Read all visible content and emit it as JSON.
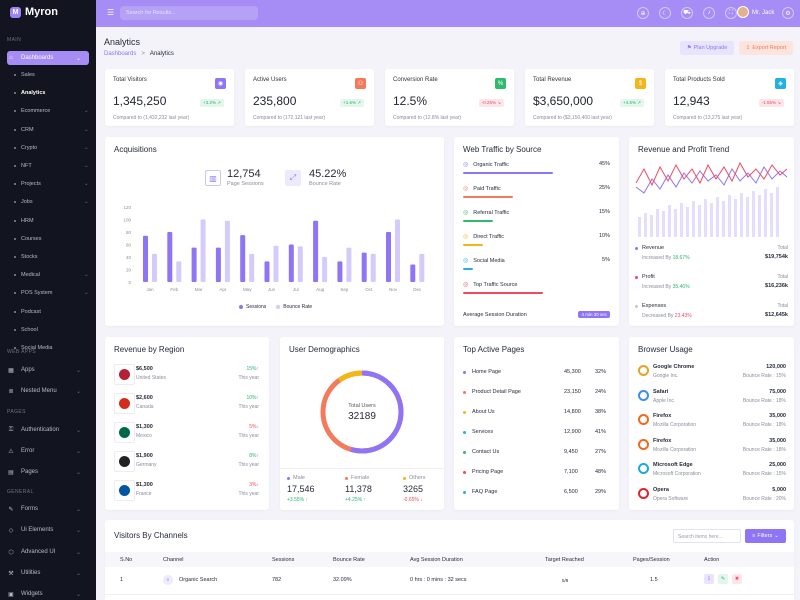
{
  "app": {
    "name": "Myron",
    "logo_letter": "M"
  },
  "sidebar": {
    "sections": [
      "MAIN",
      "WEB APPS",
      "PAGES",
      "GENERAL"
    ],
    "dashboards": "Dashboards",
    "subs": [
      "Sales",
      "Analytics",
      "Ecommerce",
      "CRM",
      "Crypto",
      "NFT",
      "Projects",
      "Jobs",
      "HRM",
      "Courses",
      "Stocks",
      "Medical",
      "POS System",
      "Podcast",
      "School",
      "Social Media"
    ],
    "web_apps": [
      "Apps",
      "Nested Menu"
    ],
    "pages": [
      "Authentication",
      "Error",
      "Pages"
    ],
    "general": [
      "Forms",
      "Ui Elements",
      "Advanced UI",
      "Utilities",
      "Widgets"
    ]
  },
  "topbar": {
    "search_placeholder": "Search for Results...",
    "user": "Mr. Jack"
  },
  "page": {
    "title": "Analytics",
    "crumb1": "Dashboards",
    "sep": ">",
    "crumb2": "Analytics",
    "btn_plan": "Plan Upgrade",
    "btn_export": "Export Report"
  },
  "stats": [
    {
      "label": "Total Visitors",
      "value": "1,345,250",
      "badge": "+3.2%",
      "cmp": "Compared to (1,432,232 last year)",
      "up": true,
      "color": "#8f74f6",
      "icon": "◉"
    },
    {
      "label": "Active Users",
      "value": "235,800",
      "badge": "+1.6%",
      "cmp": "Compared to (172,121 last year)",
      "up": true,
      "color": "#f37a5a",
      "icon": "⚇"
    },
    {
      "label": "Conversion Rate",
      "value": "12.5%",
      "badge": "-0.25%",
      "cmp": "Compared to (12.8% last year)",
      "up": false,
      "color": "#2fbb6f",
      "icon": "%"
    },
    {
      "label": "Total Revenue",
      "value": "$3,650,000",
      "badge": "+4.5%",
      "cmp": "Compared to ($3,150,400 last year)",
      "up": true,
      "color": "#f4b616",
      "icon": "$"
    },
    {
      "label": "Total Products Sold",
      "value": "12,943",
      "badge": "-1.55%",
      "cmp": "Compared to (13,275 last year)",
      "up": false,
      "color": "#25b0e3",
      "icon": "◈"
    }
  ],
  "acq": {
    "title": "Acquisitions",
    "v1": "12,754",
    "l1": "Page Sessions",
    "v2": "45.22%",
    "l2": "Bounce Rate",
    "legend1": "Sessions",
    "legend2": "Bounce Rate"
  },
  "chart_data": {
    "type": "bar",
    "categories": [
      "Jan",
      "Feb",
      "Mar",
      "Apr",
      "May",
      "Jun",
      "Jul",
      "Aug",
      "Sep",
      "Oct",
      "Nov",
      "Dec"
    ],
    "series": [
      {
        "name": "Sessions",
        "values": [
          74,
          80,
          55,
          55,
          75,
          33,
          60,
          98,
          33,
          47,
          80,
          28
        ]
      },
      {
        "name": "Bounce Rate",
        "values": [
          45,
          33,
          100,
          98,
          45,
          58,
          57,
          40,
          55,
          45,
          100,
          45
        ]
      }
    ],
    "ylim": [
      0,
      120
    ],
    "yticks": [
      "0",
      "20",
      "40",
      "60",
      "80",
      "100",
      "120"
    ]
  },
  "traffic": {
    "title": "Web Traffic by Source",
    "items": [
      {
        "name": "Organic Traffic",
        "pct": "45%",
        "v": 45,
        "color": "#8f74f6"
      },
      {
        "name": "Paid Traffic",
        "pct": "25%",
        "v": 25,
        "color": "#f37a5a"
      },
      {
        "name": "Referral Traffic",
        "pct": "15%",
        "v": 15,
        "color": "#2fbb6f"
      },
      {
        "name": "Direct Traffic",
        "pct": "10%",
        "v": 10,
        "color": "#f4b616"
      },
      {
        "name": "Social Media",
        "pct": "5%",
        "v": 5,
        "color": "#25b0e3"
      },
      {
        "name": "Top Traffic Source",
        "pct": "",
        "v": 100,
        "color": "#ef4a5f"
      }
    ],
    "avg_label": "Average Session Duration",
    "avg_value": "4 min 30 sec"
  },
  "trend": {
    "title": "Revenue and Profit Trend",
    "items": [
      {
        "name": "Revenue",
        "sub": "Increased By",
        "chg": "18.67%",
        "up": true,
        "tl": "Total",
        "tv": "$19,754k",
        "dot": "#8f74f6"
      },
      {
        "name": "Profit",
        "sub": "Increased By",
        "chg": "35.46%",
        "up": true,
        "tl": "Total",
        "tv": "$16,236k",
        "dot": "#ef4a5f"
      },
      {
        "name": "Expenses",
        "sub": "Decreased By",
        "chg": "23.43%",
        "up": false,
        "tl": "Total",
        "tv": "$12,645k",
        "dot": "#c9c9d4"
      }
    ]
  },
  "region": {
    "title": "Revenue by Region",
    "items": [
      {
        "val": "$6,500",
        "name": "United States",
        "chg": "15%",
        "up": true,
        "p": "This year"
      },
      {
        "val": "$2,600",
        "name": "Canada",
        "chg": "10%",
        "up": true,
        "p": "This year"
      },
      {
        "val": "$1,300",
        "name": "Mexico",
        "chg": "5%",
        "up": false,
        "p": "This year"
      },
      {
        "val": "$1,900",
        "name": "Germany",
        "chg": "8%",
        "up": true,
        "p": "This year"
      },
      {
        "val": "$1,300",
        "name": "France",
        "chg": "3%",
        "up": false,
        "p": "This year"
      }
    ]
  },
  "demo": {
    "title": "User Demographics",
    "center_label": "Total Users",
    "center_value": "32189",
    "items": [
      {
        "name": "Male",
        "value": "17,546",
        "chg": "+3.55%",
        "up": true,
        "color": "#8f74f6"
      },
      {
        "name": "Female",
        "value": "11,378",
        "chg": "+4.25%",
        "up": true,
        "color": "#f37a5a"
      },
      {
        "name": "Others",
        "value": "3265",
        "chg": "-0.65%",
        "up": false,
        "color": "#f4b616"
      }
    ]
  },
  "pages": {
    "title": "Top Active Pages",
    "items": [
      {
        "name": "Home Page",
        "v": "45,300",
        "p": "32%",
        "c": "#8f74f6"
      },
      {
        "name": "Product Detail Page",
        "v": "23,150",
        "p": "24%",
        "c": "#f37a5a"
      },
      {
        "name": "About Us",
        "v": "14,800",
        "p": "38%",
        "c": "#f4b616"
      },
      {
        "name": "Services",
        "v": "12,900",
        "p": "41%",
        "c": "#25b0e3"
      },
      {
        "name": "Contact Us",
        "v": "9,450",
        "p": "27%",
        "c": "#2fbb6f"
      },
      {
        "name": "Pricing Page",
        "v": "7,100",
        "p": "48%",
        "c": "#ef4a5f"
      },
      {
        "name": "FAQ Page",
        "v": "6,500",
        "p": "29%",
        "c": "#25b0e3"
      }
    ]
  },
  "browser": {
    "title": "Browser Usage",
    "items": [
      {
        "name": "Google Chrome",
        "sub": "Google Inc.",
        "v": "120,000",
        "b": "Bounce Rate : 15%"
      },
      {
        "name": "Safari",
        "sub": "Apple Inc.",
        "v": "75,000",
        "b": "Bounce Rate : 18%"
      },
      {
        "name": "Firefox",
        "sub": "Mozilla Corporation",
        "v": "35,000",
        "b": "Bounce Rate : 18%"
      },
      {
        "name": "Firefox",
        "sub": "Mozilla Corporation",
        "v": "35,000",
        "b": "Bounce Rate : 18%"
      },
      {
        "name": "Microsoft Edge",
        "sub": "Microsoft Corporation",
        "v": "25,000",
        "b": "Bounce Rate : 15%"
      },
      {
        "name": "Opera",
        "sub": "Opera Software",
        "v": "5,000",
        "b": "Bounce Rate : 20%"
      }
    ]
  },
  "visitors": {
    "title": "Visitors By Channels",
    "search": "Search items here...",
    "filter": "Filters",
    "cols": [
      "S.No",
      "Channel",
      "Sessions",
      "Bounce Rate",
      "Avg Session Duration",
      "Target Reached",
      "Pages/Session",
      "Action"
    ],
    "row": {
      "no": "1",
      "channel": "Organic Search",
      "sessions": "782",
      "bounce": "32.09%",
      "dur": "0 hrs : 0 mins : 32 secs",
      "target": "5/8",
      "pps": "1.5"
    }
  }
}
